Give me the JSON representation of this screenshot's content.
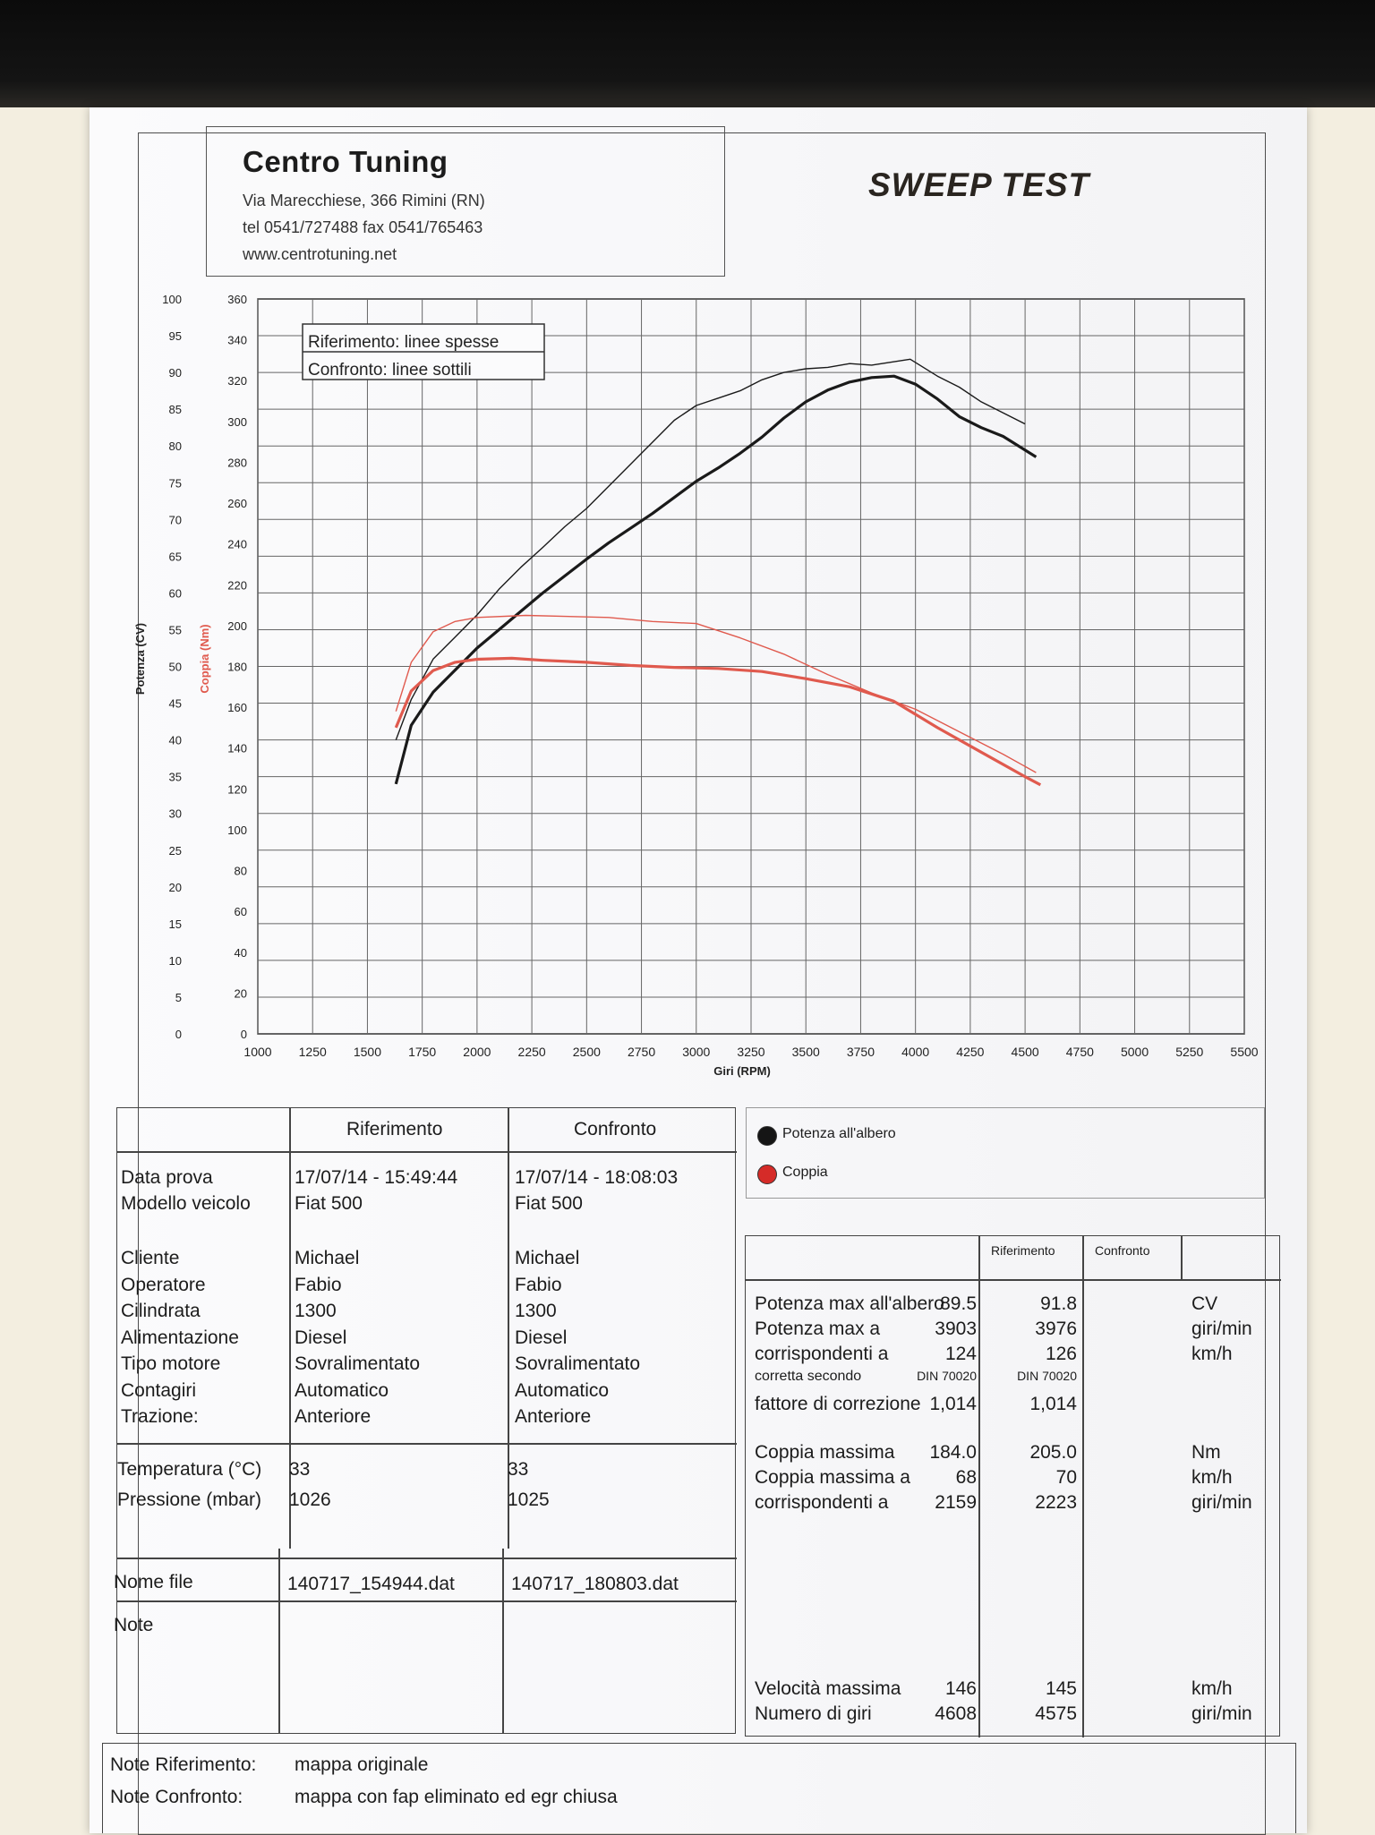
{
  "header": {
    "company": "Centro Tuning",
    "address": "Via Marecchiese, 366 Rimini (RN)",
    "phone_fax": "tel 0541/727488  fax 0541/765463",
    "website": "www.centrotuning.net",
    "title": "SWEEP TEST"
  },
  "chart_data": {
    "type": "line",
    "xlabel": "Giri (RPM)",
    "ylabel_left": "Potenza (CV)",
    "ylabel_right": "Coppia (Nm)",
    "xlim": [
      1000,
      5500
    ],
    "ylim_power": [
      0,
      100
    ],
    "ylim_torque": [
      0,
      360
    ],
    "x_ticks": [
      "1000",
      "1250",
      "1500",
      "1750",
      "2000",
      "2250",
      "2500",
      "2750",
      "3000",
      "3250",
      "3500",
      "3750",
      "4000",
      "4250",
      "4500",
      "4750",
      "5000",
      "5250",
      "5500"
    ],
    "power_ticks": [
      "0",
      "5",
      "10",
      "15",
      "20",
      "25",
      "30",
      "35",
      "40",
      "45",
      "50",
      "55",
      "60",
      "65",
      "70",
      "75",
      "80",
      "85",
      "90",
      "95",
      "100"
    ],
    "torque_ticks": [
      "0",
      "20",
      "40",
      "60",
      "80",
      "100",
      "120",
      "140",
      "160",
      "180",
      "200",
      "220",
      "240",
      "260",
      "280",
      "300",
      "320",
      "340",
      "360"
    ],
    "legend_box": [
      "Riferimento: linee spesse",
      "Confronto: linee sottili"
    ],
    "grid": true,
    "series": [
      {
        "name": "Potenza all'albero",
        "test": "Riferimento",
        "color": "#1a1a1a",
        "width": "thick",
        "x": [
          1630,
          1700,
          1800,
          1900,
          2000,
          2100,
          2200,
          2300,
          2400,
          2500,
          2600,
          2700,
          2800,
          2900,
          3000,
          3100,
          3200,
          3300,
          3400,
          3500,
          3600,
          3700,
          3800,
          3903,
          4000,
          4100,
          4200,
          4300,
          4400,
          4550
        ],
        "y": [
          34.0,
          42.0,
          46.5,
          49.5,
          52.5,
          55.0,
          57.5,
          60.0,
          62.3,
          64.6,
          66.8,
          68.8,
          70.8,
          73.0,
          75.2,
          77.0,
          79.0,
          81.2,
          83.8,
          86.0,
          87.6,
          88.7,
          89.3,
          89.5,
          88.4,
          86.4,
          84.0,
          82.5,
          81.3,
          78.5
        ]
      },
      {
        "name": "Potenza all'albero",
        "test": "Confronto",
        "color": "#1a1a1a",
        "width": "thin",
        "x": [
          1630,
          1700,
          1800,
          1900,
          2000,
          2100,
          2200,
          2300,
          2400,
          2500,
          2600,
          2700,
          2800,
          2900,
          3000,
          3100,
          3200,
          3300,
          3400,
          3500,
          3600,
          3700,
          3800,
          3976,
          4100,
          4200,
          4300,
          4400,
          4500
        ],
        "y": [
          40.0,
          45.5,
          51.0,
          54.0,
          57.0,
          60.5,
          63.5,
          66.2,
          69.0,
          71.5,
          74.5,
          77.5,
          80.5,
          83.5,
          85.5,
          86.5,
          87.5,
          89.0,
          90.0,
          90.5,
          90.7,
          91.2,
          91.0,
          91.8,
          89.5,
          88.0,
          86.0,
          84.5,
          83.0
        ]
      },
      {
        "name": "Coppia",
        "test": "Riferimento",
        "color": "#e05a4e",
        "width": "thick",
        "x": [
          1630,
          1700,
          1800,
          1900,
          2000,
          2159,
          2300,
          2500,
          2700,
          2900,
          3100,
          3300,
          3500,
          3700,
          3900,
          4100,
          4300,
          4500,
          4570
        ],
        "y": [
          150,
          168,
          178,
          182,
          183.5,
          184,
          183,
          182,
          180.5,
          179.5,
          179,
          177.5,
          174,
          170,
          163,
          150,
          138,
          126,
          122
        ]
      },
      {
        "name": "Coppia",
        "test": "Confronto",
        "color": "#e05a4e",
        "width": "thin",
        "x": [
          1630,
          1700,
          1800,
          1900,
          2000,
          2223,
          2400,
          2600,
          2800,
          3000,
          3200,
          3400,
          3600,
          3800,
          4000,
          4200,
          4400,
          4550
        ],
        "y": [
          158,
          182,
          197,
          202,
          204,
          205,
          204.5,
          204,
          202,
          201,
          194,
          186,
          176,
          167,
          159,
          148,
          137,
          128
        ]
      }
    ]
  },
  "legend": {
    "items": [
      {
        "label": "Potenza all'albero",
        "color": "#151515"
      },
      {
        "label": "Coppia",
        "color": "#d52b28"
      }
    ]
  },
  "test_info": {
    "col_headers": [
      "Riferimento",
      "Confronto"
    ],
    "group1": {
      "labels": [
        "Data prova",
        "Modello veicolo"
      ],
      "ref": [
        "17/07/14 - 15:49:44",
        "Fiat 500"
      ],
      "cmp": [
        "17/07/14 - 18:08:03",
        "Fiat 500"
      ]
    },
    "group2": {
      "labels": [
        "Cliente",
        "Operatore",
        "Cilindrata",
        "Alimentazione",
        "Tipo motore",
        "Contagiri",
        "Trazione:"
      ],
      "ref": [
        "Michael",
        "Fabio",
        "1300",
        "Diesel",
        "Sovralimentato",
        "Automatico",
        "Anteriore"
      ],
      "cmp": [
        "Michael",
        "Fabio",
        "1300",
        "Diesel",
        "Sovralimentato",
        "Automatico",
        "Anteriore"
      ]
    },
    "env": {
      "labels": [
        "Temperatura (°C)",
        "Pressione (mbar)"
      ],
      "ref": [
        "33",
        "1026"
      ],
      "cmp": [
        "33",
        "1025"
      ]
    },
    "file": {
      "label": "Nome file",
      "ref": "140717_154944.dat",
      "cmp": "140717_180803.dat"
    },
    "note_label": "Note"
  },
  "results": {
    "col_headers": [
      "Riferimento",
      "Confronto"
    ],
    "power": {
      "labels": [
        "Potenza max all'albero",
        "Potenza max a",
        "corrispondenti a",
        "corretta secondo",
        "fattore di correzione"
      ],
      "ref": [
        "89.5",
        "3903",
        "124",
        "DIN 70020",
        "1,014"
      ],
      "cmp": [
        "91.8",
        "3976",
        "126",
        "DIN 70020",
        "1,014"
      ],
      "units": [
        "CV",
        "giri/min",
        "km/h",
        "",
        ""
      ]
    },
    "torque": {
      "labels": [
        "Coppia massima",
        "Coppia massima a",
        "corrispondenti a"
      ],
      "ref": [
        "184.0",
        "68",
        "2159"
      ],
      "cmp": [
        "205.0",
        "70",
        "2223"
      ],
      "units": [
        "Nm",
        "km/h",
        "giri/min"
      ]
    },
    "speed": {
      "labels": [
        "Velocità massima",
        "Numero di giri"
      ],
      "ref": [
        "146",
        "4608"
      ],
      "cmp": [
        "145",
        "4575"
      ],
      "units": [
        "km/h",
        "giri/min"
      ]
    }
  },
  "notes": {
    "ref_label": "Note Riferimento:",
    "ref_value": "mappa originale",
    "cmp_label": "Note Confronto:",
    "cmp_value": "mappa con fap eliminato ed egr chiusa"
  }
}
